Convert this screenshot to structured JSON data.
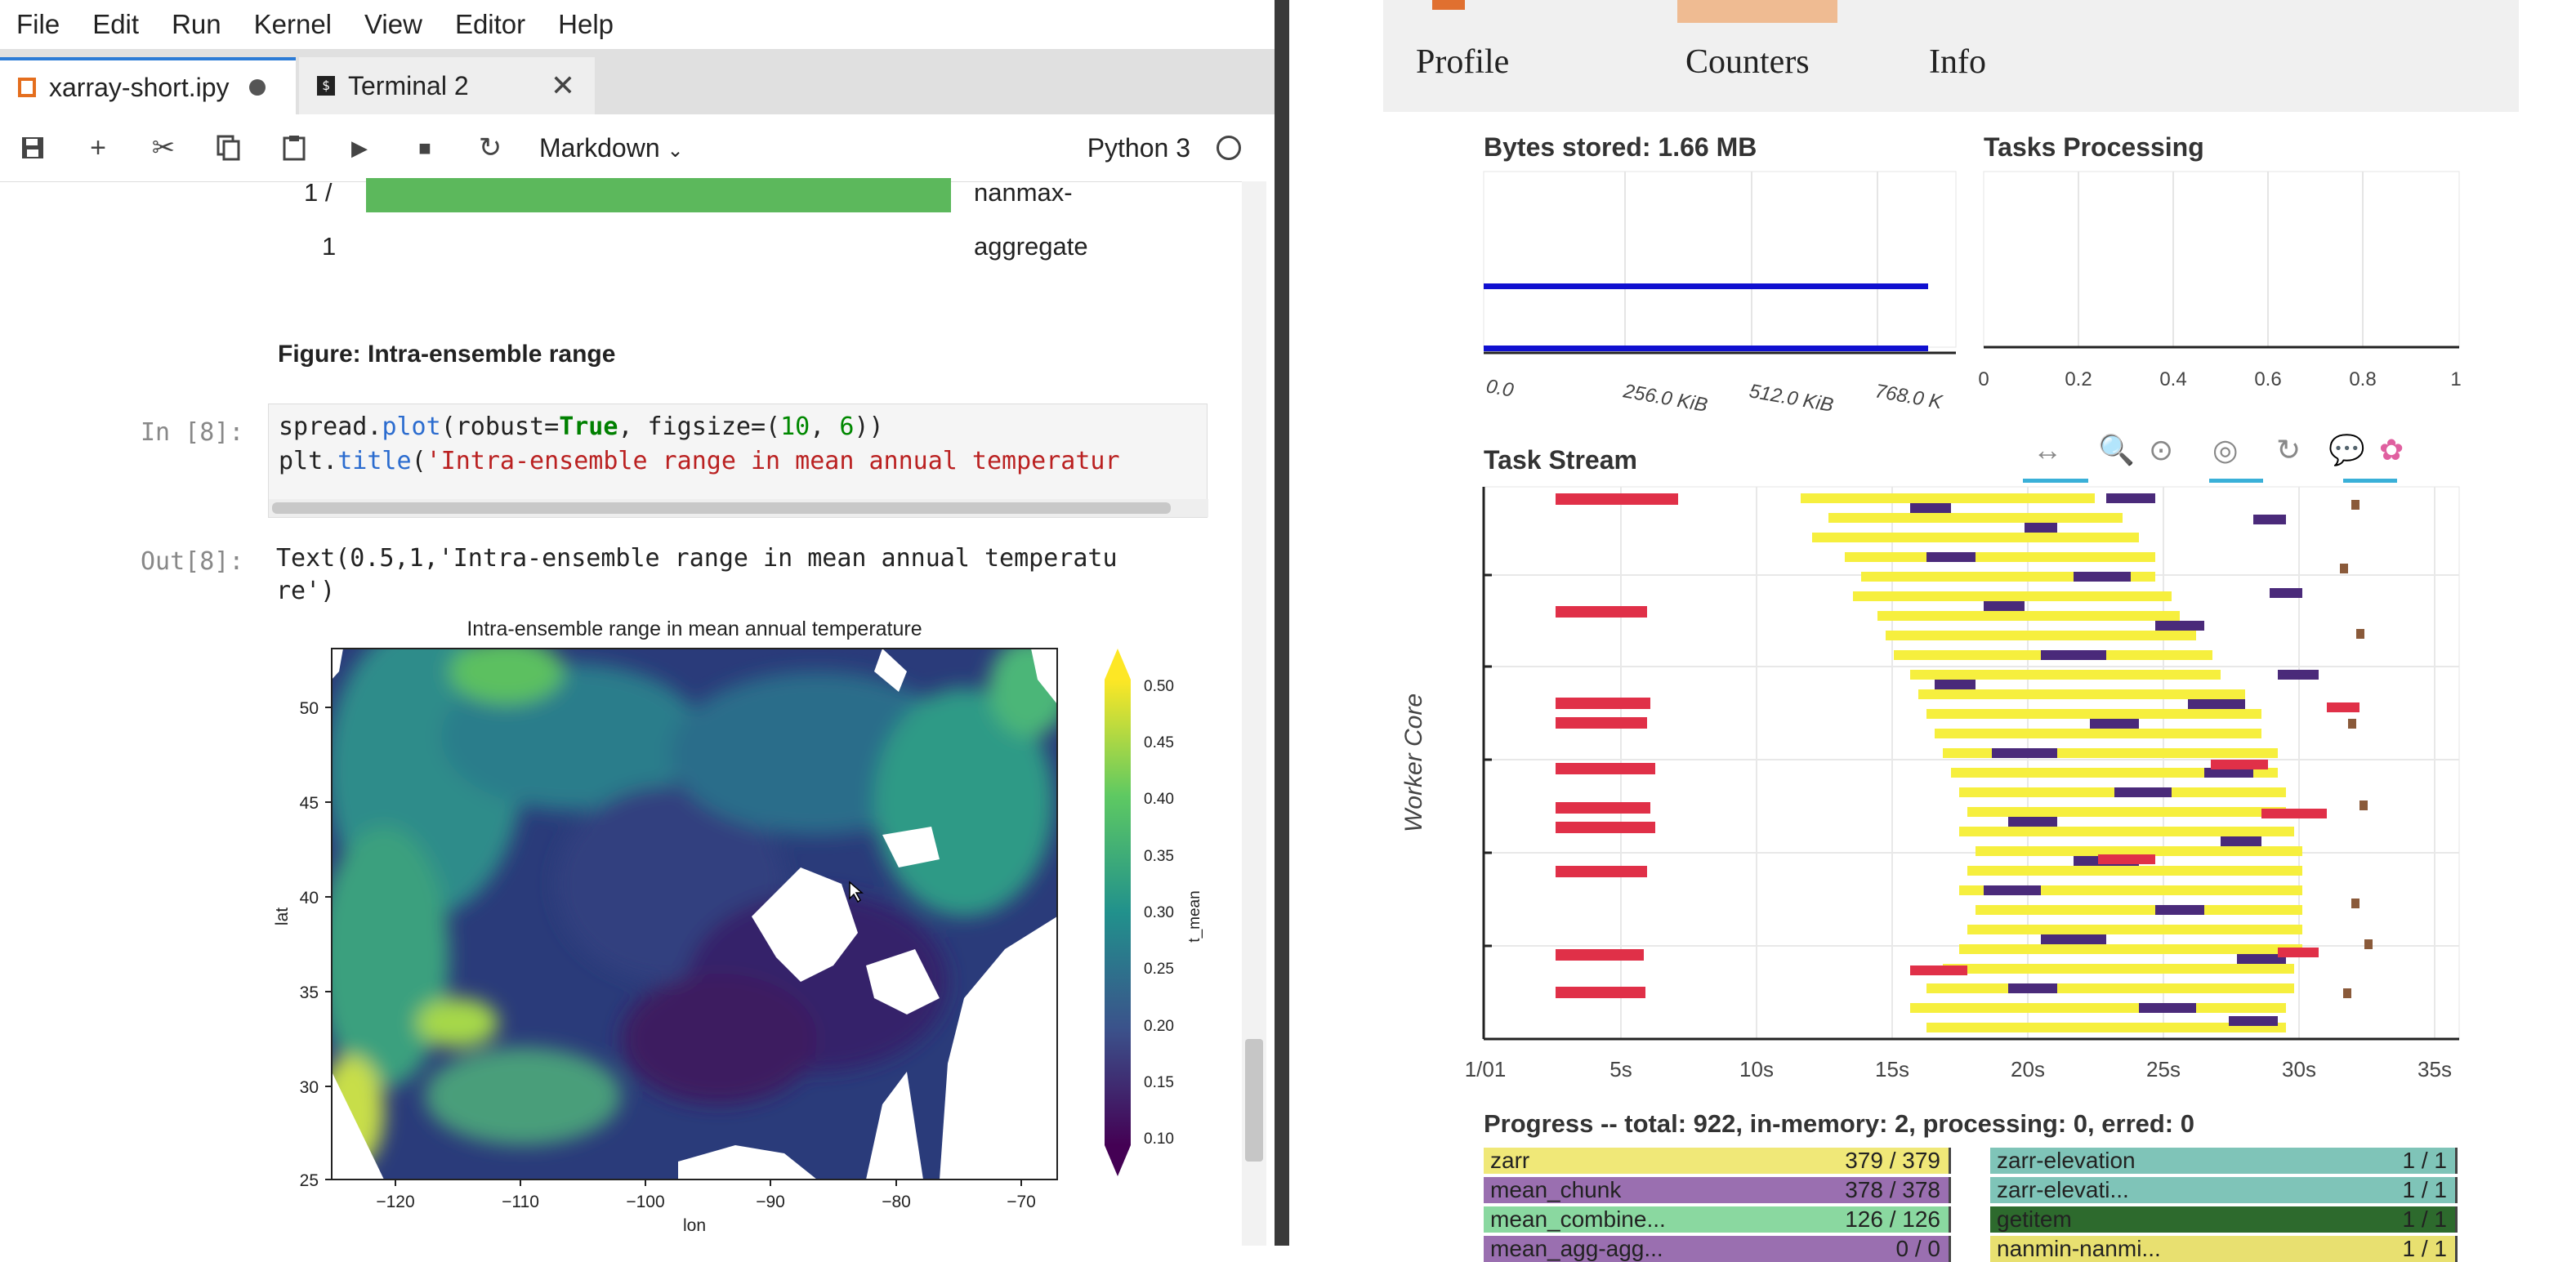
{
  "menu": [
    "File",
    "Edit",
    "Run",
    "Kernel",
    "View",
    "Editor",
    "Help"
  ],
  "tabs": [
    {
      "label": "xarray-short.ipy"
    },
    {
      "label": "Terminal 2"
    }
  ],
  "toolbar": {
    "cell_type": "Markdown",
    "kernel_name": "Python 3"
  },
  "notebook": {
    "progress_rows": [
      {
        "count": "1 /",
        "task": "nanmax-"
      },
      {
        "count": "1",
        "task": "aggregate"
      }
    ],
    "figure_caption": "Figure: Intra-ensemble range",
    "in_prompt": "In [8]:",
    "code_line1_a": "spread.",
    "code_line1_b": "plot",
    "code_line1_c": "(robust=",
    "code_line1_d": "True",
    "code_line1_e": ", figsize=(",
    "code_line1_f": "10",
    "code_line1_g": ", ",
    "code_line1_h": "6",
    "code_line1_i": "))",
    "code_line2_a": "plt.",
    "code_line2_b": "title",
    "code_line2_c": "(",
    "code_line2_d": "'Intra-ensemble range in mean annual temperatur",
    "out_prompt": "Out[8]:",
    "out_line1": "Text(0.5,1,'Intra-ensemble range in mean annual temperatu",
    "out_line2": "re')",
    "map_plot": {
      "title": "Intra-ensemble range in mean annual temperature",
      "xlabel": "lon",
      "ylabel": "lat",
      "colorbar_label": "t_mean",
      "xticks": [
        "−120",
        "−110",
        "−100",
        "−90",
        "−80",
        "−70"
      ],
      "yticks": [
        "50",
        "45",
        "40",
        "35",
        "30",
        "25"
      ],
      "colorbar_ticks": [
        "0.50",
        "0.45",
        "0.40",
        "0.35",
        "0.30",
        "0.25",
        "0.20",
        "0.15",
        "0.10"
      ]
    }
  },
  "dashboard": {
    "nav": [
      "Profile",
      "Counters",
      "Info"
    ],
    "bytes_title": "Bytes stored: 1.66 MB",
    "bytes_ticks": [
      "0.0",
      "256.0 KiB",
      "512.0 KiB",
      "768.0 K"
    ],
    "tasks_title": "Tasks Processing",
    "tasks_ticks": [
      "0",
      "0.2",
      "0.4",
      "0.6",
      "0.8",
      "1"
    ],
    "stream_title": "Task Stream",
    "stream_ylabel": "Worker Core",
    "stream_ticks": [
      "1/01",
      "5s",
      "10s",
      "15s",
      "20s",
      "25s",
      "30s",
      "35s"
    ],
    "progress_title": "Progress -- total: 922, in-memory: 2, processing: 0, erred: 0",
    "progress_left": [
      {
        "name": "zarr",
        "count": "379 / 379",
        "color": "#f0e878"
      },
      {
        "name": "mean_chunk",
        "count": "378 / 378",
        "color": "#9a6fb0"
      },
      {
        "name": "mean_combine...",
        "count": "126 / 126",
        "color": "#8ad8a0"
      },
      {
        "name": "mean_agg-agg...",
        "count": "0 / 0",
        "color": "#9a6fb0"
      }
    ],
    "progress_right": [
      {
        "name": "zarr-elevation",
        "count": "1 / 1",
        "color": "#7fc4b8"
      },
      {
        "name": "zarr-elevati...",
        "count": "1 / 1",
        "color": "#7fc4b8"
      },
      {
        "name": "getitem",
        "count": "1 / 1",
        "color": "#2d6a2d"
      },
      {
        "name": "nanmin-nanmi...",
        "count": "1 / 1",
        "color": "#e8e070"
      }
    ],
    "colors": {
      "stream_yellow": "#f6ef3e",
      "stream_purple": "#4a2a7a",
      "stream_red": "#e03048",
      "bytes_bar": "#1010d0"
    }
  }
}
